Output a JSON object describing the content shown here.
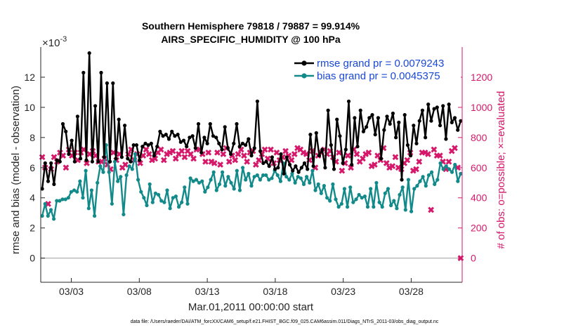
{
  "chart_data": {
    "type": "line",
    "title": "Southern Hemisphere 79818 / 79887 = 99.914%",
    "subtitle": "AIRS_SPECIFIC_HUMIDITY @ 100 hPa",
    "xlabel": "Mar.01,2011 00:00:00 start",
    "ylabel": "rmse and bias (model - observation)",
    "y2label": "# of obs: o=possible; ×=evaluated",
    "yexponent": "×10",
    "yexponent_power": "-3",
    "footnote": "data file: /Users/raeder/DAI/ATM_forcXX/CAM6_setup/f.e21.FHIST_BGC.f09_025.CAM6assim.011/Diags_NTrS_2011-03/obs_diag_output.nc",
    "xlim": [
      0.5,
      31.5
    ],
    "ylim": [
      -1.6,
      14
    ],
    "y2lim": [
      -160,
      1400
    ],
    "x_ticks": [
      2.75,
      7.75,
      12.75,
      17.75,
      22.75,
      27.75
    ],
    "x_tick_labels": [
      "03/03",
      "03/08",
      "03/13",
      "03/18",
      "03/23",
      "03/28"
    ],
    "y_ticks": [
      0,
      2,
      4,
      6,
      8,
      10,
      12
    ],
    "y_tick_labels": [
      "0",
      "2",
      "4",
      "6",
      "8",
      "10",
      "12"
    ],
    "y2_ticks": [
      0,
      200,
      400,
      600,
      800,
      1000,
      1200
    ],
    "y2_tick_labels": [
      "0",
      "200",
      "400",
      "600",
      "800",
      "1000",
      "1200"
    ],
    "legend_position": "top-right",
    "colors": {
      "rmse": "#000000",
      "bias": "#138a8a",
      "counts": "#d6186a",
      "zero_line": "#bbbbbb",
      "legend_text": "#1a48d6"
    },
    "series": [
      {
        "name": "rmse grand pr = 0.0079243",
        "axis": "left",
        "values": [
          4.6,
          6.3,
          5.1,
          6.3,
          4.9,
          6.5,
          6.4,
          8.9,
          8.4,
          6.9,
          7.8,
          6.4,
          9.4,
          6.6,
          12.3,
          6.5,
          13.6,
          6.4,
          10.1,
          6.4,
          12.3,
          6.7,
          11.6,
          6.4,
          11.6,
          6.6,
          9.2,
          6.7,
          8.8,
          6.6,
          6.4,
          7.5,
          7.5,
          6.5,
          7.4,
          7.6,
          7.5,
          7.6,
          6.8,
          7.4,
          8.4,
          8.1,
          8.2,
          7.9,
          8.4,
          8.1,
          8.2,
          7.7,
          7.8,
          7.4,
          8.0,
          8.1,
          7.3,
          8.9,
          7.0,
          8.0,
          7.6,
          8.9,
          8.1,
          8.0,
          7.6,
          7.2,
          8.7,
          7.3,
          6.9,
          7.6,
          8.9,
          7.4,
          7.6,
          7.5,
          7.9,
          6.8,
          7.3,
          10.4,
          7.1,
          6.3,
          6.4,
          6.1,
          6.7,
          5.9,
          6.0,
          6.9,
          5.6,
          6.7,
          6.2,
          5.8,
          6.1,
          5.7,
          6.0,
          6.3,
          5.9,
          8.2,
          6.1,
          8.3,
          6.8,
          7.2,
          6.0,
          9.8,
          7.5,
          5.9,
          9.2,
          8.1,
          6.3,
          7.2,
          10.4,
          6.2,
          9.3,
          7.4,
          9.8,
          8.4,
          8.7,
          9.3,
          9.5,
          8.2,
          9.3,
          6.6,
          8.5,
          9.4,
          8.9,
          9.6,
          8.0,
          9.0,
          5.2,
          9.5,
          7.5,
          6.8,
          8.8,
          7.6,
          9.1,
          9.8,
          8.0,
          10.2,
          9.1,
          9.9,
          10.0,
          8.8,
          10.1,
          7.9,
          10.2,
          9.0,
          9.3,
          8.5,
          9.1
        ]
      },
      {
        "name": "bias grand pr = 0.0045375",
        "axis": "left",
        "values": [
          2.8,
          3.6,
          2.8,
          3.2,
          2.6,
          3.8,
          3.8,
          3.9,
          3.9,
          4.0,
          4.4,
          4.5,
          4.4,
          5.1,
          4.0,
          5.8,
          3.3,
          4.5,
          2.8,
          5.0,
          6.1,
          5.7,
          7.5,
          5.7,
          3.6,
          6.4,
          5.1,
          5.4,
          2.9,
          5.5,
          6.1,
          5.9,
          6.9,
          5.2,
          4.4,
          4.0,
          3.5,
          4.9,
          3.7,
          4.3,
          4.2,
          3.8,
          3.7,
          4.5,
          3.3,
          4.0,
          4.1,
          3.4,
          3.7,
          4.7,
          3.6,
          5.3,
          5.1,
          5.2,
          5.0,
          5.1,
          4.4,
          4.7,
          5.2,
          5.7,
          4.5,
          4.9,
          5.7,
          4.8,
          5.4,
          5.0,
          4.6,
          5.8,
          4.5,
          6.0,
          5.2,
          5.6,
          4.8,
          5.4,
          5.5,
          5.2,
          5.5,
          5.5,
          5.2,
          5.3,
          5.8,
          5.5,
          5.1,
          6.3,
          5.4,
          5.2,
          5.6,
          5.0,
          5.4,
          5.3,
          4.9,
          5.4,
          5.0,
          5.8,
          4.5,
          4.9,
          4.3,
          4.8,
          4.0,
          3.8,
          4.9,
          3.9,
          3.4,
          3.6,
          4.6,
          3.4,
          4.7,
          3.7,
          3.9,
          4.2,
          4.0,
          4.1,
          3.4,
          4.6,
          3.4,
          5.0,
          3.7,
          3.4,
          4.3,
          4.6,
          3.5,
          3.8,
          3.3,
          4.2,
          4.7,
          3.2,
          5.2,
          3.1,
          4.6,
          4.8,
          5.1,
          5.4,
          4.8,
          5.5,
          5.7,
          4.9,
          5.2,
          6.3,
          5.9,
          6.1,
          5.9,
          5.7,
          6.2,
          5.1,
          5.6
        ]
      },
      {
        "name": "# of obs possible / evaluated",
        "axis": "right",
        "values": [
          670,
          600,
          360,
          590,
          670,
          640,
          700,
          680,
          600,
          720,
          680,
          700,
          650,
          700,
          720,
          630,
          690,
          710,
          680,
          640,
          640,
          660,
          620,
          590,
          700,
          650,
          690,
          600,
          620,
          690,
          720,
          650,
          690,
          630,
          680,
          720,
          690,
          650,
          660,
          700,
          720,
          650,
          690,
          700,
          710,
          660,
          690,
          710,
          670,
          710,
          690,
          660,
          720,
          720,
          690,
          640,
          700,
          640,
          630,
          700,
          620,
          690,
          730,
          640,
          680,
          650,
          690,
          720,
          680,
          640,
          700,
          710,
          620,
          650,
          690,
          720,
          660,
          720,
          630,
          700,
          650,
          670,
          710,
          680,
          650,
          690,
          730,
          720,
          700,
          690,
          650,
          710,
          600,
          680,
          700,
          720,
          690,
          710,
          670,
          640,
          700,
          580,
          630,
          680,
          600,
          720,
          690,
          640,
          660,
          690,
          700,
          610,
          620,
          680,
          650,
          730,
          630,
          600,
          610,
          670,
          600,
          590,
          630,
          650,
          700,
          580,
          590,
          640,
          700,
          700,
          690,
          320,
          720,
          680,
          680,
          640,
          590,
          640,
          710,
          730,
          600,
          0
        ]
      }
    ]
  }
}
